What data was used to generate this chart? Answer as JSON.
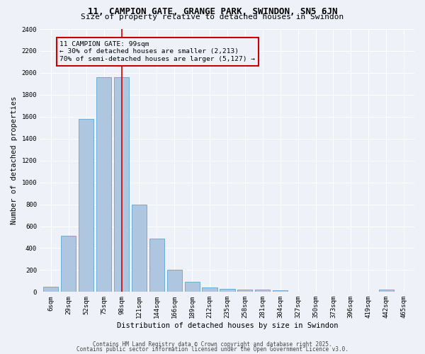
{
  "title": "11, CAMPION GATE, GRANGE PARK, SWINDON, SN5 6JN",
  "subtitle": "Size of property relative to detached houses in Swindon",
  "xlabel": "Distribution of detached houses by size in Swindon",
  "ylabel": "Number of detached properties",
  "categories": [
    "6sqm",
    "29sqm",
    "52sqm",
    "75sqm",
    "98sqm",
    "121sqm",
    "144sqm",
    "166sqm",
    "189sqm",
    "212sqm",
    "235sqm",
    "258sqm",
    "281sqm",
    "304sqm",
    "327sqm",
    "350sqm",
    "373sqm",
    "396sqm",
    "419sqm",
    "442sqm",
    "465sqm"
  ],
  "values": [
    50,
    510,
    1580,
    1960,
    1960,
    800,
    490,
    200,
    90,
    40,
    25,
    20,
    20,
    15,
    0,
    0,
    0,
    0,
    0,
    20,
    0
  ],
  "bar_color": "#aec6e0",
  "bar_edge_color": "#6baed6",
  "vline_index": 4,
  "vline_color": "#cc0000",
  "annotation_title": "11 CAMPION GATE: 99sqm",
  "annotation_line1": "← 30% of detached houses are smaller (2,213)",
  "annotation_line2": "70% of semi-detached houses are larger (5,127) →",
  "annotation_box_color": "#cc0000",
  "ylim": [
    0,
    2400
  ],
  "yticks": [
    0,
    200,
    400,
    600,
    800,
    1000,
    1200,
    1400,
    1600,
    1800,
    2000,
    2200,
    2400
  ],
  "footer_line1": "Contains HM Land Registry data © Crown copyright and database right 2025.",
  "footer_line2": "Contains public sector information licensed under the Open Government Licence v3.0.",
  "background_color": "#eef2f8",
  "grid_color": "#ffffff",
  "title_fontsize": 9,
  "subtitle_fontsize": 8,
  "axis_label_fontsize": 7.5,
  "tick_fontsize": 6.5,
  "footer_fontsize": 5.5
}
